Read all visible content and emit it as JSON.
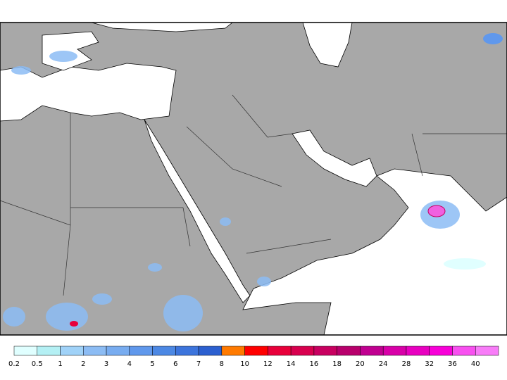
{
  "legend": {
    "levels": [
      0.2,
      0.5,
      1,
      2,
      3,
      4,
      5,
      6,
      7,
      8,
      10,
      12,
      14,
      16,
      18,
      20,
      24,
      28,
      32,
      36,
      40
    ],
    "colors": [
      "#e0ffff",
      "#b4f0f4",
      "#a0d2f8",
      "#8cbcf4",
      "#78acf0",
      "#6098ec",
      "#4c88e4",
      "#3c74dc",
      "#2c60d0",
      "#ff7a00",
      "#ff0000",
      "#e8003a",
      "#d8004e",
      "#c80060",
      "#b8006c",
      "#c00090",
      "#d800a8",
      "#e800c0",
      "#f800d8",
      "#f850f0",
      "#f87cf8"
    ]
  }
}
